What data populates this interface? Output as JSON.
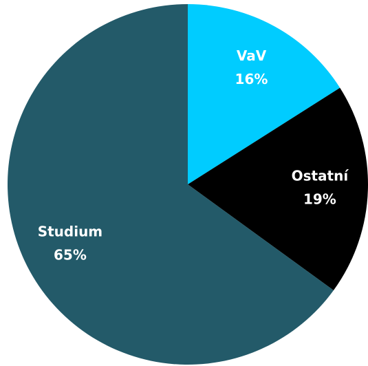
{
  "chart_data": {
    "type": "pie",
    "categories": [
      "VaV",
      "Ostatní",
      "Studium"
    ],
    "values": [
      16,
      19,
      65
    ],
    "value_labels": [
      "16%",
      "19%",
      "65%"
    ],
    "colors": [
      "#00ccff",
      "#000000",
      "#235a69"
    ]
  }
}
